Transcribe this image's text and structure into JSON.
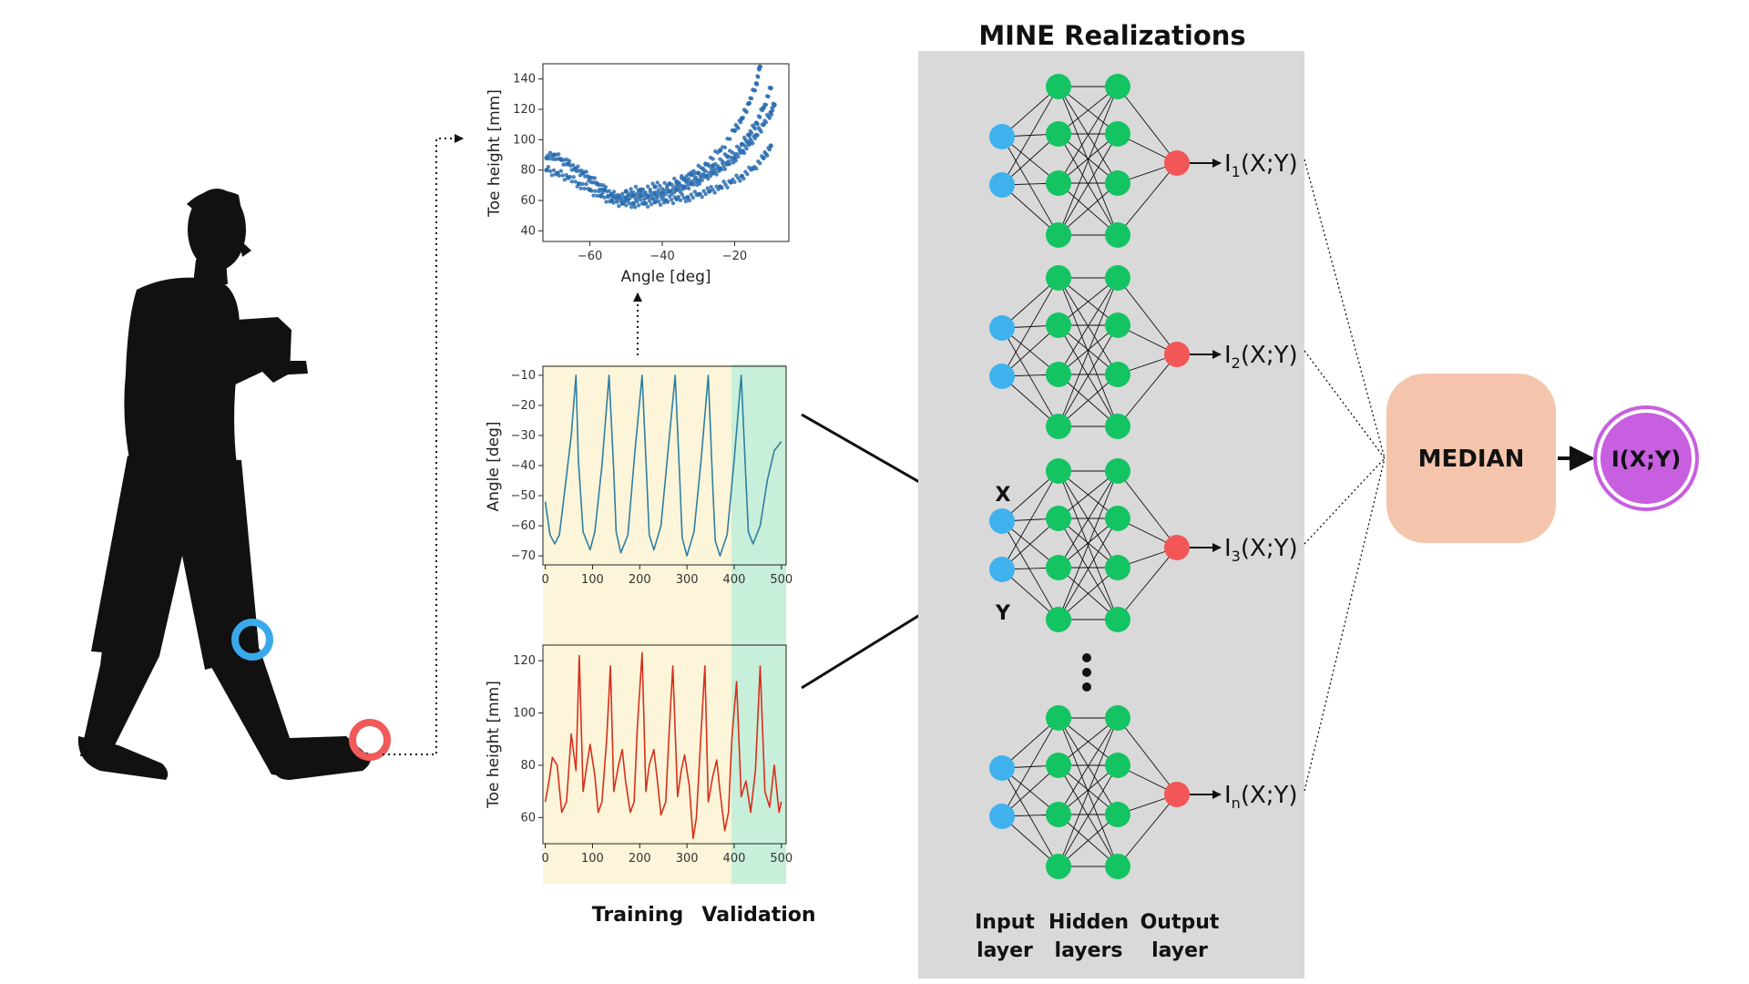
{
  "title": "MINE Realizations",
  "layer_labels": {
    "input": [
      "Input",
      "layer"
    ],
    "hidden": [
      "Hidden",
      "layers"
    ],
    "output": [
      "Output",
      "layer"
    ]
  },
  "input_names": {
    "x": "X",
    "y": "Y"
  },
  "outputs": [
    {
      "main": "I",
      "sub": "1",
      "rest": "(X;Y)"
    },
    {
      "main": "I",
      "sub": "2",
      "rest": "(X;Y)"
    },
    {
      "main": "I",
      "sub": "3",
      "rest": "(X;Y)"
    },
    {
      "main": "I",
      "sub": "n",
      "rest": "(X;Y)"
    }
  ],
  "median_label": "MEDIAN",
  "result_label": "I(X;Y)",
  "split_labels": {
    "training": "Training",
    "validation": "Validation"
  },
  "colors": {
    "input_node": "#3fb2ee",
    "hidden_node": "#14c462",
    "output_node": "#f25656",
    "panel": "#d9d9d9",
    "median_box": "#f4c5ac",
    "result_circle": "#c85ee0",
    "knee_marker": "#3aa9ec",
    "toe_marker": "#f25a5a",
    "training_bg": "#fdf5d9",
    "validation_bg": "#c8efd9",
    "angle_line": "#2e7fa3",
    "toe_line": "#d6301e",
    "scatter": "#2d6fb0"
  },
  "icons": {
    "walker": "walking-person-icon"
  },
  "chart_data": [
    {
      "type": "scatter",
      "xlabel": "Angle [deg]",
      "ylabel": "Toe height [mm]",
      "xlim": [
        -73,
        -5
      ],
      "ylim": [
        33,
        150
      ],
      "xticks": [
        -60,
        -40,
        -20
      ],
      "yticks": [
        40,
        60,
        80,
        100,
        120,
        140
      ],
      "series": [
        {
          "x": [
            -72,
            -70,
            -68,
            -66,
            -64,
            -62,
            -60,
            -58,
            -56,
            -54,
            -52,
            -50,
            -48,
            -46,
            -44,
            -42,
            -40,
            -38,
            -36,
            -34,
            -32,
            -30,
            -28,
            -26,
            -24,
            -22,
            -20,
            -18,
            -16,
            -14,
            -12,
            -10,
            -9
          ],
          "y": [
            88,
            90,
            87,
            84,
            81,
            78,
            75,
            71,
            67,
            64,
            62,
            62,
            63,
            63,
            63,
            64,
            65,
            66,
            67,
            69,
            71,
            73,
            76,
            78,
            81,
            84,
            88,
            92,
            97,
            103,
            110,
            118,
            123
          ]
        },
        {
          "x": [
            -72,
            -69,
            -66,
            -63,
            -60,
            -57,
            -54,
            -51,
            -48,
            -45,
            -42,
            -39,
            -36,
            -33,
            -30,
            -27,
            -24,
            -21,
            -18,
            -15,
            -12,
            -10
          ],
          "y": [
            80,
            78,
            75,
            71,
            67,
            63,
            60,
            58,
            58,
            58,
            59,
            60,
            61,
            62,
            64,
            66,
            69,
            72,
            76,
            81,
            88,
            96
          ]
        },
        {
          "x": [
            -50,
            -46,
            -42,
            -38,
            -34,
            -30,
            -26,
            -22,
            -18,
            -16,
            -14,
            -12,
            -10
          ],
          "y": [
            66,
            67,
            69,
            71,
            74,
            78,
            83,
            89,
            97,
            103,
            111,
            121,
            134
          ]
        },
        {
          "x": [
            -36,
            -32,
            -28,
            -24,
            -20,
            -18,
            -16,
            -14,
            -13
          ],
          "y": [
            72,
            77,
            84,
            93,
            106,
            114,
            124,
            137,
            148
          ]
        }
      ]
    },
    {
      "type": "line",
      "xlabel": "",
      "ylabel": "Angle [deg]",
      "xlim": [
        -5,
        510
      ],
      "ylim": [
        -73,
        -7
      ],
      "xticks": [
        0,
        100,
        200,
        300,
        400,
        500
      ],
      "yticks": [
        -10,
        -20,
        -30,
        -40,
        -50,
        -60,
        -70
      ],
      "training_range": [
        -5,
        395
      ],
      "validation_range": [
        395,
        510
      ],
      "x": [
        0,
        10,
        20,
        30,
        40,
        55,
        65,
        70,
        80,
        95,
        105,
        120,
        135,
        145,
        150,
        160,
        175,
        190,
        205,
        215,
        220,
        230,
        245,
        260,
        275,
        285,
        290,
        300,
        315,
        330,
        345,
        355,
        360,
        370,
        385,
        400,
        415,
        425,
        430,
        440,
        455,
        470,
        485,
        500
      ],
      "y": [
        -52,
        -63,
        -66,
        -63,
        -50,
        -30,
        -10,
        -38,
        -62,
        -68,
        -62,
        -40,
        -10,
        -42,
        -62,
        -69,
        -63,
        -35,
        -10,
        -45,
        -63,
        -68,
        -60,
        -35,
        -10,
        -45,
        -64,
        -70,
        -62,
        -38,
        -10,
        -48,
        -65,
        -70,
        -63,
        -38,
        -10,
        -45,
        -62,
        -66,
        -60,
        -45,
        -35,
        -32
      ]
    },
    {
      "type": "line",
      "xlabel": "",
      "ylabel": "Toe height [mm]",
      "xlim": [
        -5,
        510
      ],
      "ylim": [
        50,
        126
      ],
      "xticks": [
        0,
        100,
        200,
        300,
        400,
        500
      ],
      "yticks": [
        60,
        80,
        100,
        120
      ],
      "training_range": [
        -5,
        395
      ],
      "validation_range": [
        395,
        510
      ],
      "x": [
        0,
        8,
        15,
        25,
        35,
        45,
        55,
        65,
        72,
        80,
        88,
        95,
        105,
        112,
        120,
        130,
        138,
        145,
        155,
        163,
        170,
        180,
        188,
        195,
        205,
        213,
        220,
        230,
        238,
        245,
        255,
        263,
        270,
        280,
        288,
        295,
        305,
        313,
        320,
        330,
        338,
        345,
        355,
        363,
        370,
        380,
        388,
        395,
        405,
        415,
        425,
        435,
        445,
        455,
        465,
        475,
        485,
        495,
        500
      ],
      "y": [
        66,
        74,
        83,
        80,
        62,
        66,
        92,
        78,
        122,
        70,
        80,
        88,
        76,
        62,
        66,
        90,
        118,
        70,
        80,
        86,
        74,
        62,
        66,
        95,
        123,
        70,
        80,
        86,
        73,
        61,
        66,
        95,
        118,
        68,
        78,
        84,
        72,
        52,
        60,
        93,
        118,
        66,
        76,
        82,
        70,
        55,
        62,
        90,
        112,
        68,
        74,
        62,
        78,
        118,
        70,
        64,
        80,
        62,
        66
      ]
    }
  ]
}
